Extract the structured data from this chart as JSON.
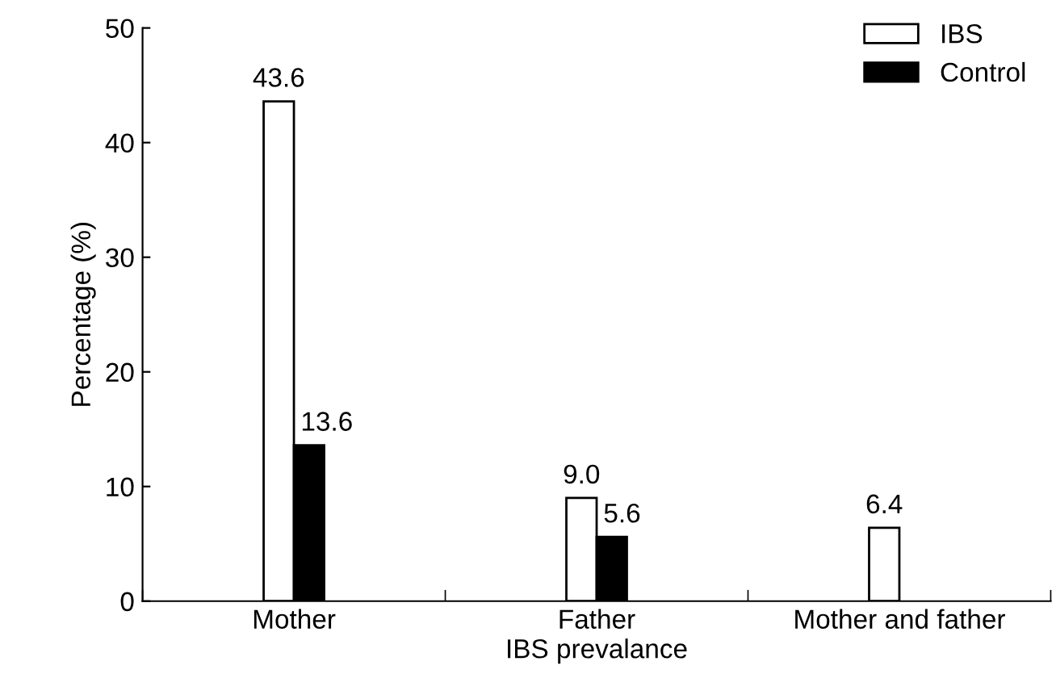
{
  "chart_data": {
    "type": "bar",
    "xlabel": "IBS prevalance",
    "ylabel": "Percentage (%)",
    "categories": [
      "Mother",
      "Father",
      "Mother and father"
    ],
    "series": [
      {
        "name": "IBS",
        "color": "#ffffff",
        "values": [
          43.6,
          9.0,
          6.4
        ],
        "value_labels": [
          "43.6",
          "9.0",
          "6.4"
        ]
      },
      {
        "name": "Control",
        "color": "#000000",
        "values": [
          13.6,
          5.6,
          null
        ],
        "value_labels": [
          "13.6",
          "5.6",
          null
        ]
      }
    ],
    "ylim": [
      0,
      50
    ],
    "yticks": [
      0,
      10,
      20,
      30,
      40,
      50
    ],
    "grid": false,
    "legend": "top right"
  }
}
